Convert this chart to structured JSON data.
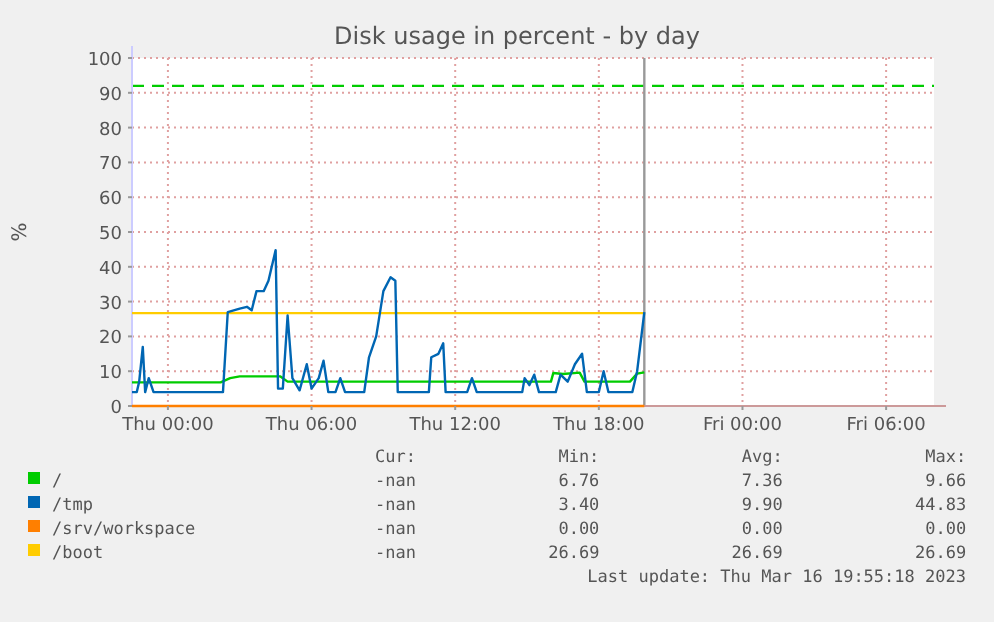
{
  "chart_data": {
    "type": "line",
    "title": "Disk usage in percent - by day",
    "ylabel": "%",
    "xlim": [
      "2023-03-15T22:30",
      "2023-03-17T08:00"
    ],
    "xticks": [
      {
        "value": "2023-03-16T00:00",
        "label": "Thu 00:00"
      },
      {
        "value": "2023-03-16T06:00",
        "label": "Thu 06:00"
      },
      {
        "value": "2023-03-16T12:00",
        "label": "Thu 12:00"
      },
      {
        "value": "2023-03-16T18:00",
        "label": "Thu 18:00"
      },
      {
        "value": "2023-03-17T00:00",
        "label": "Fri 00:00"
      },
      {
        "value": "2023-03-17T06:00",
        "label": "Fri 06:00"
      }
    ],
    "ylim": [
      0,
      100
    ],
    "yticks": [
      0,
      10,
      20,
      30,
      40,
      50,
      60,
      70,
      80,
      90,
      100
    ],
    "grid": true,
    "legend": "bottom",
    "marker": "none",
    "series": [
      {
        "name": "/srv/workspace",
        "color": "#ff7f00",
        "x": [
          "2023-03-15T22:30",
          "2023-03-16T19:54"
        ],
        "values": [
          0,
          0
        ]
      },
      {
        "name": "/boot",
        "color": "#ffcc00",
        "x": [
          "2023-03-15T22:30",
          "2023-03-16T19:54"
        ],
        "values": [
          26.69,
          26.69
        ]
      },
      {
        "name": "/",
        "color": "#00cc00",
        "x": [
          "2023-03-15T22:30",
          "2023-03-16T02:12",
          "2023-03-16T02:36",
          "2023-03-16T03:00",
          "2023-03-16T04:42",
          "2023-03-16T05:00",
          "2023-03-16T16:00",
          "2023-03-16T16:06",
          "2023-03-16T16:30",
          "2023-03-16T17:12",
          "2023-03-16T17:24",
          "2023-03-16T19:18",
          "2023-03-16T19:36",
          "2023-03-16T19:54"
        ],
        "values": [
          6.8,
          6.8,
          8,
          8.5,
          8.5,
          7,
          7,
          9.5,
          9.2,
          9.6,
          7,
          7,
          9.3,
          9.66
        ]
      },
      {
        "name": "/tmp",
        "color": "#0066b3",
        "x": [
          "2023-03-15T22:30",
          "2023-03-15T22:42",
          "2023-03-15T22:48",
          "2023-03-15T22:57",
          "2023-03-15T23:03",
          "2023-03-15T23:12",
          "2023-03-15T23:24",
          "2023-03-16T02:18",
          "2023-03-16T02:30",
          "2023-03-16T03:00",
          "2023-03-16T03:18",
          "2023-03-16T03:30",
          "2023-03-16T03:42",
          "2023-03-16T04:00",
          "2023-03-16T04:12",
          "2023-03-16T04:30",
          "2023-03-16T04:36",
          "2023-03-16T04:48",
          "2023-03-16T05:00",
          "2023-03-16T05:12",
          "2023-03-16T05:30",
          "2023-03-16T05:48",
          "2023-03-16T06:00",
          "2023-03-16T06:18",
          "2023-03-16T06:30",
          "2023-03-16T06:42",
          "2023-03-16T07:00",
          "2023-03-16T07:12",
          "2023-03-16T07:24",
          "2023-03-16T08:12",
          "2023-03-16T08:24",
          "2023-03-16T08:42",
          "2023-03-16T09:00",
          "2023-03-16T09:18",
          "2023-03-16T09:30",
          "2023-03-16T09:36",
          "2023-03-16T10:54",
          "2023-03-16T11:00",
          "2023-03-16T11:18",
          "2023-03-16T11:30",
          "2023-03-16T11:36",
          "2023-03-16T12:30",
          "2023-03-16T12:42",
          "2023-03-16T12:54",
          "2023-03-16T14:48",
          "2023-03-16T14:54",
          "2023-03-16T15:06",
          "2023-03-16T15:18",
          "2023-03-16T15:30",
          "2023-03-16T16:12",
          "2023-03-16T16:24",
          "2023-03-16T16:42",
          "2023-03-16T17:00",
          "2023-03-16T17:18",
          "2023-03-16T17:30",
          "2023-03-16T18:00",
          "2023-03-16T18:12",
          "2023-03-16T18:24",
          "2023-03-16T19:24",
          "2023-03-16T19:36",
          "2023-03-16T19:54"
        ],
        "values": [
          4,
          4,
          7,
          17,
          4,
          8,
          4,
          4,
          27,
          28,
          28.5,
          27.5,
          33,
          33,
          36,
          44.8,
          5,
          5,
          26,
          8,
          4.5,
          12,
          5,
          8,
          13,
          4,
          4,
          8,
          4,
          4,
          14,
          20,
          33,
          37,
          36,
          4,
          4,
          14,
          15,
          18,
          4,
          4,
          8,
          4,
          4,
          8,
          6,
          9,
          4,
          4,
          9,
          7,
          12,
          15,
          4,
          4,
          10,
          4,
          4,
          10,
          27
        ]
      }
    ],
    "ref_lines": [
      {
        "axis": "y",
        "value": 92,
        "color": "#00cc00",
        "line_style": "dashed"
      },
      {
        "axis": "x",
        "value": "2023-03-16T19:54",
        "color": "#999999",
        "line_style": "solid"
      }
    ],
    "annotations": [
      "Cur:",
      "Min:",
      "Avg:",
      "Max:",
      "-nan",
      "0.00",
      "0.00",
      "0.00",
      "-nan",
      "26.69",
      "26.69",
      "26.69",
      "-nan",
      "6.76",
      "7.36",
      "9.66",
      "-nan",
      "3.40",
      "9.90",
      "44.83",
      "Last update: Thu Mar 16 19:55:18 2023"
    ]
  }
}
